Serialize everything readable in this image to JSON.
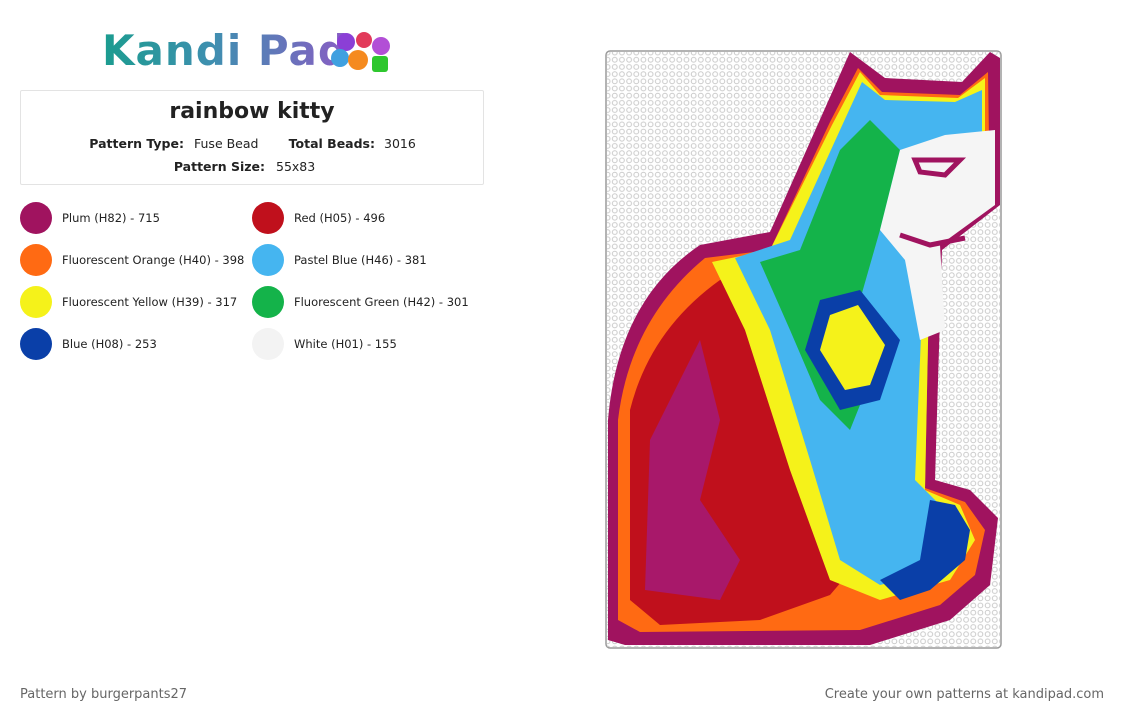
{
  "header": {
    "logo": "Kandi Pad"
  },
  "pattern": {
    "title": "rainbow kitty",
    "type_label": "Pattern Type:",
    "type": "Fuse Bead",
    "total_label": "Total Beads:",
    "total": "3016",
    "size_label": "Pattern Size:",
    "size": "55x83"
  },
  "colors": [
    {
      "name": "Plum (H82) - 715",
      "color": "#a0135f"
    },
    {
      "name": "Fluorescent Orange (H40) - 398",
      "color": "#ff6a13"
    },
    {
      "name": "Fluorescent Yellow (H39) - 317",
      "color": "#f5f21a"
    },
    {
      "name": "Blue (H08) - 253",
      "color": "#0a3fa8"
    },
    {
      "name": "Red (H05) - 496",
      "color": "#c0101c"
    },
    {
      "name": "Pastel Blue (H46) - 381",
      "color": "#45b5f0"
    },
    {
      "name": "Fluorescent Green (H42) - 301",
      "color": "#14b34a"
    },
    {
      "name": "White (H01) - 155",
      "color": "#f3f3f3"
    }
  ],
  "footer": {
    "author": "Pattern by burgerpants27",
    "cta": "Create your own patterns at kandipad.com"
  }
}
